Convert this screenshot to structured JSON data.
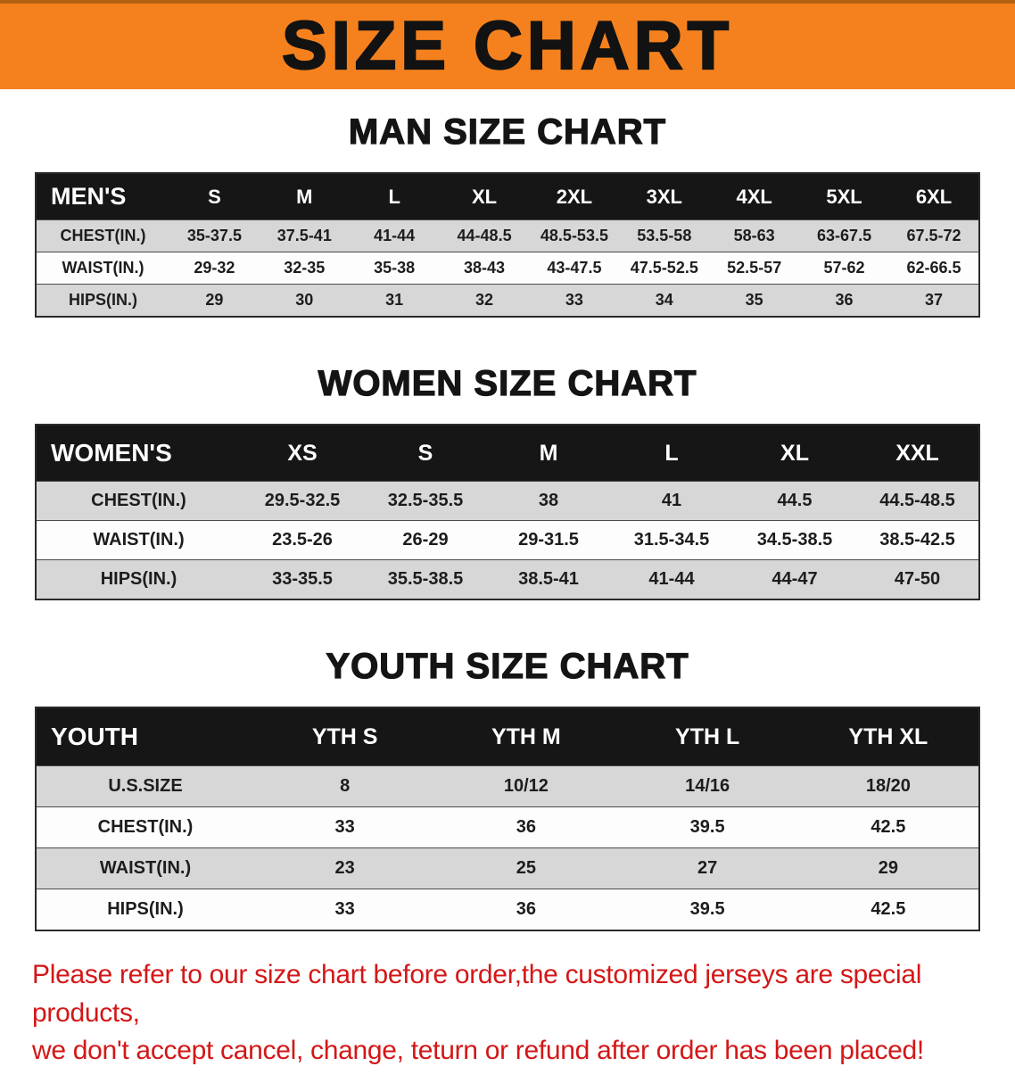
{
  "banner": {
    "title": "SIZE CHART"
  },
  "men": {
    "heading": "MAN SIZE CHART",
    "header": [
      "MEN'S",
      "S",
      "M",
      "L",
      "XL",
      "2XL",
      "3XL",
      "4XL",
      "5XL",
      "6XL"
    ],
    "rows": [
      [
        "CHEST(IN.)",
        "35-37.5",
        "37.5-41",
        "41-44",
        "44-48.5",
        "48.5-53.5",
        "53.5-58",
        "58-63",
        "63-67.5",
        "67.5-72"
      ],
      [
        "WAIST(IN.)",
        "29-32",
        "32-35",
        "35-38",
        "38-43",
        "43-47.5",
        "47.5-52.5",
        "52.5-57",
        "57-62",
        "62-66.5"
      ],
      [
        "HIPS(IN.)",
        "29",
        "30",
        "31",
        "32",
        "33",
        "34",
        "35",
        "36",
        "37"
      ]
    ]
  },
  "women": {
    "heading": "WOMEN SIZE CHART",
    "header": [
      "WOMEN'S",
      "XS",
      "S",
      "M",
      "L",
      "XL",
      "XXL"
    ],
    "rows": [
      [
        "CHEST(IN.)",
        "29.5-32.5",
        "32.5-35.5",
        "38",
        "41",
        "44.5",
        "44.5-48.5"
      ],
      [
        "WAIST(IN.)",
        "23.5-26",
        "26-29",
        "29-31.5",
        "31.5-34.5",
        "34.5-38.5",
        "38.5-42.5"
      ],
      [
        "HIPS(IN.)",
        "33-35.5",
        "35.5-38.5",
        "38.5-41",
        "41-44",
        "44-47",
        "47-50"
      ]
    ]
  },
  "youth": {
    "heading": "YOUTH SIZE CHART",
    "header": [
      "YOUTH",
      "YTH S",
      "YTH M",
      "YTH L",
      "YTH XL"
    ],
    "rows": [
      [
        "U.S.SIZE",
        "8",
        "10/12",
        "14/16",
        "18/20"
      ],
      [
        "CHEST(IN.)",
        "33",
        "36",
        "39.5",
        "42.5"
      ],
      [
        "WAIST(IN.)",
        "23",
        "25",
        "27",
        "29"
      ],
      [
        "HIPS(IN.)",
        "33",
        "36",
        "39.5",
        "42.5"
      ]
    ]
  },
  "footer": {
    "line1": "Please refer to our size chart before order,the customized jerseys are special products,",
    "line2": "we don't accept cancel, change, teturn or refund after order has been placed!"
  },
  "colors": {
    "banner_bg": "#f5811e",
    "banner_text": "#121212",
    "table_header_bg": "#161616",
    "table_header_text": "#ffffff",
    "row_alt_bg": "#d7d7d7",
    "footer_text": "#d31717"
  }
}
